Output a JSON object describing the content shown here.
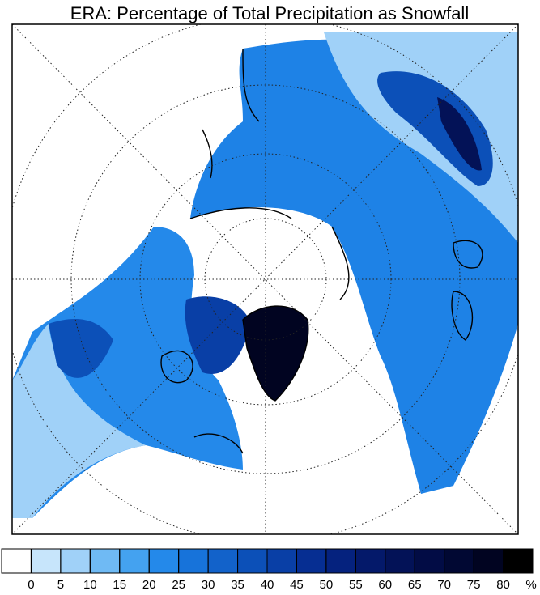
{
  "title": "ERA: Percentage of Total Precipitation as Snowfall",
  "colorbar": {
    "ticks": [
      0,
      5,
      10,
      15,
      20,
      25,
      30,
      35,
      40,
      45,
      50,
      55,
      60,
      65,
      70,
      75,
      80
    ],
    "unit": "%",
    "colors": [
      "#ffffff",
      "#c7e5fb",
      "#a0d1f8",
      "#6fbaf4",
      "#44a2f0",
      "#2489ea",
      "#1773da",
      "#1262ca",
      "#0c50b8",
      "#093fa6",
      "#062e92",
      "#05227e",
      "#04196a",
      "#031257",
      "#020c45",
      "#010833",
      "#010421",
      "#000000"
    ]
  }
}
